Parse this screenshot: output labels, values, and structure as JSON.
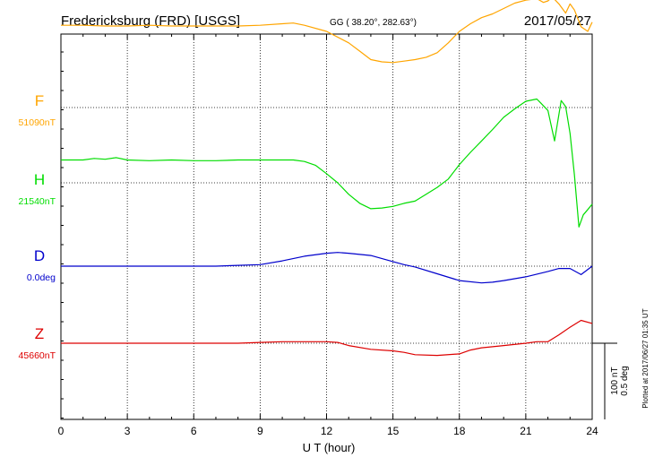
{
  "header": {
    "station": "Fredericksburg (FRD)  [USGS]",
    "coords": "GG ( 38.20°, 282.63°)",
    "date": "2017/05/27"
  },
  "footer": {
    "plotted": "Plotted at 2017/06/27 01:35 UT"
  },
  "chart_data": {
    "type": "line",
    "title": "Fredericksburg (FRD)  [USGS]",
    "xlabel": "U T (hour)",
    "xlim": [
      0,
      24
    ],
    "xticks": [
      0,
      3,
      6,
      9,
      12,
      15,
      18,
      21,
      24
    ],
    "xtick_labels": [
      "0",
      "3",
      "6",
      "9",
      "12",
      "15",
      "18",
      "21",
      "24"
    ],
    "grid": true,
    "scale_bar": {
      "label1": "100 nT",
      "label2": "0.5 deg",
      "value_nT": 100,
      "value_deg": 0.5
    },
    "series": [
      {
        "name": "F",
        "baseline_label": "51090nT",
        "baseline": 51090,
        "unit": "nT",
        "color": "#ffa500",
        "x": [
          0,
          1,
          2,
          3,
          4,
          5,
          6,
          7,
          8,
          9,
          10,
          10.5,
          11,
          12,
          13,
          13.5,
          14,
          14.5,
          15,
          15.5,
          16,
          16.5,
          17,
          17.5,
          18,
          18.5,
          19,
          19.5,
          20,
          20.5,
          21,
          21.5,
          21.8,
          22,
          22.2,
          22.5,
          22.8,
          23,
          23.2,
          23.5,
          23.8,
          24
        ],
        "values": [
          108,
          108,
          107,
          107,
          108,
          107,
          107,
          107,
          107,
          108,
          110,
          111,
          108,
          100,
          85,
          74,
          63,
          60,
          59,
          61,
          63,
          66,
          72,
          85,
          100,
          110,
          118,
          123,
          130,
          137,
          141,
          143,
          138,
          140,
          145,
          136,
          124,
          136,
          128,
          106,
          100,
          112
        ]
      },
      {
        "name": "H",
        "baseline_label": "21540nT",
        "baseline": 21540,
        "unit": "nT",
        "color": "#00dd00",
        "x": [
          0,
          1,
          1.5,
          2,
          2.5,
          3,
          4,
          5,
          6,
          7,
          8,
          9,
          10,
          10.5,
          11,
          11.5,
          12,
          12.5,
          13,
          13.5,
          14,
          14.5,
          15,
          15.5,
          16,
          16.5,
          17,
          17.5,
          18,
          18.5,
          19,
          19.5,
          20,
          20.5,
          21,
          21.5,
          21.7,
          22,
          22.3,
          22.6,
          22.8,
          23,
          23.2,
          23.4,
          23.6,
          23.8,
          24
        ],
        "values": [
          30,
          30,
          32,
          31,
          33,
          30,
          29,
          30,
          29,
          29,
          30,
          30,
          30,
          30,
          28,
          23,
          12,
          0,
          -15,
          -27,
          -34,
          -33,
          -31,
          -27,
          -24,
          -15,
          -6,
          5,
          24,
          40,
          55,
          70,
          86,
          97,
          107,
          110,
          104,
          95,
          55,
          108,
          100,
          65,
          10,
          -58,
          -42,
          -35,
          -28
        ]
      },
      {
        "name": "D",
        "baseline_label": "0.0deg",
        "baseline": 0.0,
        "unit": "deg",
        "color": "#0000cc",
        "x": [
          0,
          1,
          2,
          3,
          4,
          5,
          6,
          7,
          8,
          9,
          10,
          11,
          12,
          12.5,
          13,
          14,
          15,
          15.5,
          16,
          17,
          18,
          19,
          19.5,
          20,
          21,
          22,
          22.5,
          23,
          23.5,
          24
        ],
        "values": [
          0,
          0,
          0,
          0,
          0,
          0,
          0,
          0,
          1,
          2,
          7,
          13,
          17,
          18,
          17,
          14,
          6,
          2,
          -1,
          -10,
          -19,
          -22,
          -21,
          -19,
          -14,
          -7,
          -3,
          -3,
          -11,
          0
        ]
      },
      {
        "name": "Z",
        "baseline_label": "45660nT",
        "baseline": 45660,
        "unit": "nT",
        "color": "#dd0000",
        "x": [
          0,
          1,
          2,
          3,
          4,
          5,
          6,
          7,
          8,
          9,
          10,
          11,
          12,
          12.5,
          13,
          14,
          15,
          15.5,
          16,
          17,
          18,
          18.5,
          19,
          20,
          21,
          21.5,
          22,
          22.5,
          23,
          23.5,
          24
        ],
        "values": [
          0,
          0,
          0,
          0,
          0,
          0,
          0,
          0,
          0,
          1,
          2,
          2,
          2,
          1,
          -3,
          -8,
          -10,
          -12,
          -15,
          -16,
          -14,
          -9,
          -6,
          -3,
          0,
          2,
          2,
          11,
          21,
          30,
          26
        ]
      }
    ]
  }
}
